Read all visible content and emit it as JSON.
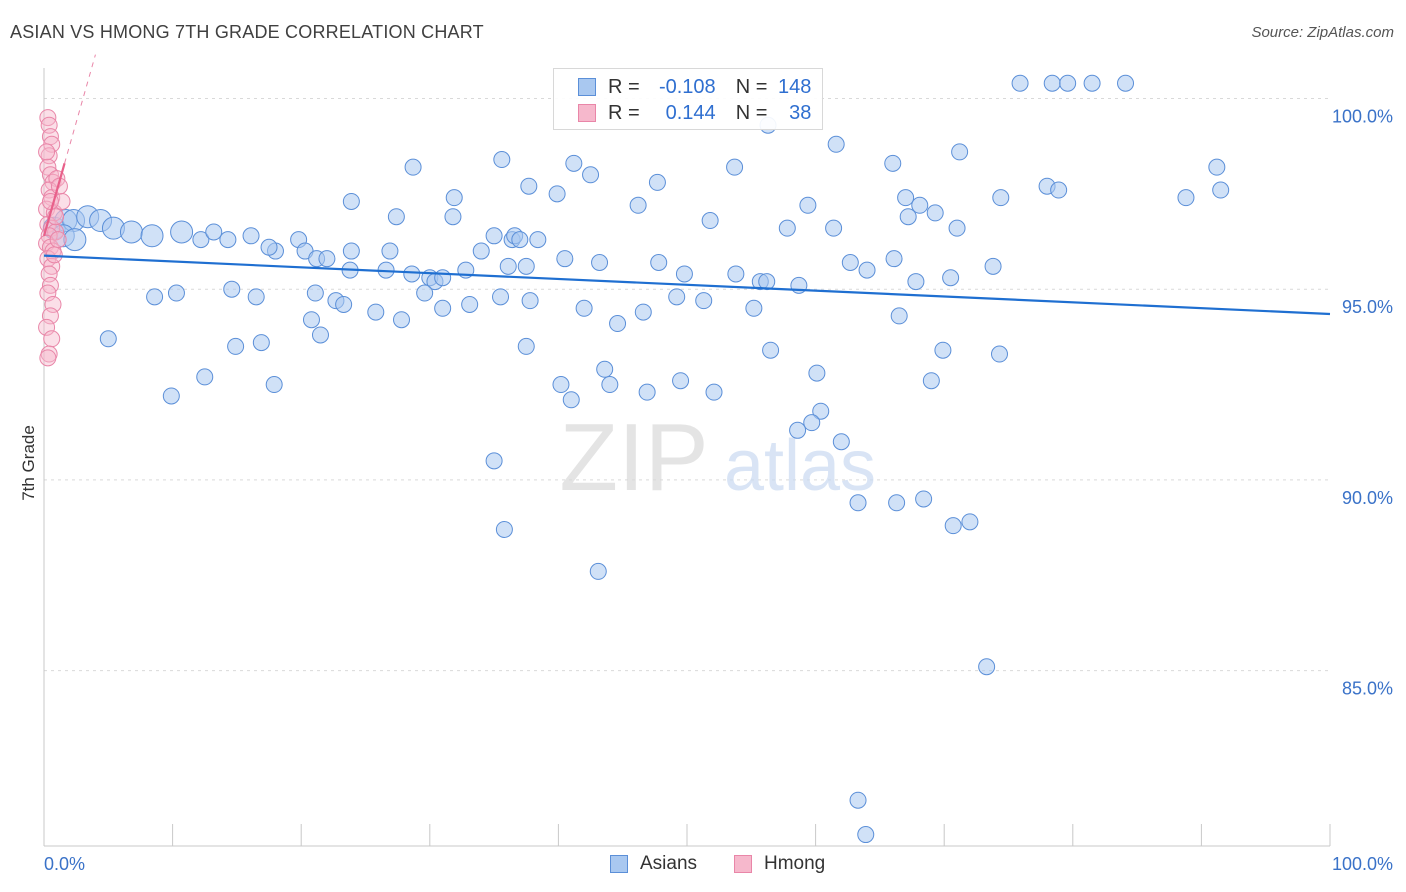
{
  "header": {
    "title": "ASIAN VS HMONG 7TH GRADE CORRELATION CHART",
    "source": "Source: ZipAtlas.com"
  },
  "legend": {
    "asians": {
      "r_label": "R =",
      "r_value": "-0.108",
      "n_label": "N =",
      "n_value": "148"
    },
    "hmong": {
      "r_label": "R =",
      "r_value": "0.144",
      "n_label": "N =",
      "n_value": "38"
    }
  },
  "bottom_legend": {
    "asians": "Asians",
    "hmong": "Hmong"
  },
  "watermark": {
    "zip": "ZIP",
    "atlas": "atlas"
  },
  "colors": {
    "asian_fill": "#a9c8f0",
    "asian_stroke": "#5b8fd8",
    "asian_line": "#1f6fd1",
    "hmong_fill": "#f6b8cc",
    "hmong_stroke": "#e986a8",
    "hmong_line": "#e8608a",
    "tick_label": "#3a72c8",
    "grid": "#d9d9d9"
  },
  "chart_data": {
    "type": "scatter",
    "title": "ASIAN VS HMONG 7TH GRADE CORRELATION CHART",
    "xlabel": "",
    "ylabel": "7th Grade",
    "xlim": [
      0,
      100
    ],
    "ylim": [
      80.4,
      100.8
    ],
    "x_tick_labels": [
      "0.0%",
      "100.0%"
    ],
    "y_ticks": [
      {
        "value": 100,
        "label": "100.0%"
      },
      {
        "value": 95,
        "label": "95.0%"
      },
      {
        "value": 90,
        "label": "90.0%"
      },
      {
        "value": 85,
        "label": "85.0%"
      }
    ],
    "series": [
      {
        "name": "Asians",
        "r": -0.108,
        "n": 148,
        "trend": {
          "x": [
            0,
            100
          ],
          "y": [
            95.88,
            94.35
          ]
        },
        "points": [
          [
            75.9,
            100.4
          ],
          [
            78.4,
            100.4
          ],
          [
            79.6,
            100.4
          ],
          [
            81.5,
            100.4
          ],
          [
            84.1,
            100.4
          ],
          [
            56.3,
            99.3
          ],
          [
            61.6,
            98.8
          ],
          [
            66.0,
            98.3
          ],
          [
            71.2,
            98.6
          ],
          [
            35.6,
            98.4
          ],
          [
            42.5,
            98.0
          ],
          [
            28.7,
            98.2
          ],
          [
            41.2,
            98.3
          ],
          [
            37.7,
            97.7
          ],
          [
            53.7,
            98.2
          ],
          [
            47.7,
            97.8
          ],
          [
            91.2,
            98.2
          ],
          [
            31.9,
            97.4
          ],
          [
            39.9,
            97.5
          ],
          [
            23.9,
            97.3
          ],
          [
            46.2,
            97.2
          ],
          [
            51.8,
            96.8
          ],
          [
            59.4,
            97.2
          ],
          [
            67.0,
            97.4
          ],
          [
            78.0,
            97.7
          ],
          [
            78.9,
            97.6
          ],
          [
            91.5,
            97.6
          ],
          [
            88.8,
            97.4
          ],
          [
            74.4,
            97.4
          ],
          [
            68.1,
            97.2
          ],
          [
            69.3,
            97.0
          ],
          [
            67.2,
            96.9
          ],
          [
            71.0,
            96.6
          ],
          [
            57.8,
            96.6
          ],
          [
            27.4,
            96.9
          ],
          [
            31.8,
            96.9
          ],
          [
            35.0,
            96.4
          ],
          [
            36.4,
            96.3
          ],
          [
            36.6,
            96.4
          ],
          [
            37.0,
            96.3
          ],
          [
            38.4,
            96.3
          ],
          [
            0.8,
            96.6
          ],
          [
            1.7,
            96.8
          ],
          [
            2.3,
            96.8
          ],
          [
            3.4,
            96.9
          ],
          [
            4.4,
            96.8
          ],
          [
            5.4,
            96.6
          ],
          [
            1.5,
            96.4
          ],
          [
            2.4,
            96.3
          ],
          [
            6.8,
            96.5
          ],
          [
            8.4,
            96.4
          ],
          [
            10.7,
            96.5
          ],
          [
            12.2,
            96.3
          ],
          [
            13.2,
            96.5
          ],
          [
            14.3,
            96.3
          ],
          [
            16.1,
            96.4
          ],
          [
            18.0,
            96.0
          ],
          [
            17.5,
            96.1
          ],
          [
            19.8,
            96.3
          ],
          [
            23.9,
            96.0
          ],
          [
            26.9,
            96.0
          ],
          [
            20.3,
            96.0
          ],
          [
            21.2,
            95.8
          ],
          [
            22.0,
            95.8
          ],
          [
            23.8,
            95.5
          ],
          [
            26.6,
            95.5
          ],
          [
            28.6,
            95.4
          ],
          [
            30.0,
            95.3
          ],
          [
            30.4,
            95.2
          ],
          [
            31.0,
            95.3
          ],
          [
            32.8,
            95.5
          ],
          [
            34.0,
            96.0
          ],
          [
            37.5,
            95.6
          ],
          [
            40.5,
            95.8
          ],
          [
            43.2,
            95.7
          ],
          [
            47.8,
            95.7
          ],
          [
            49.8,
            95.4
          ],
          [
            53.8,
            95.4
          ],
          [
            55.7,
            95.2
          ],
          [
            56.2,
            95.2
          ],
          [
            58.7,
            95.1
          ],
          [
            61.4,
            96.6
          ],
          [
            62.7,
            95.7
          ],
          [
            64.0,
            95.5
          ],
          [
            66.1,
            95.8
          ],
          [
            67.8,
            95.2
          ],
          [
            70.5,
            95.3
          ],
          [
            73.8,
            95.6
          ],
          [
            66.5,
            94.3
          ],
          [
            8.6,
            94.8
          ],
          [
            10.3,
            94.9
          ],
          [
            14.6,
            95.0
          ],
          [
            16.5,
            94.8
          ],
          [
            20.8,
            94.2
          ],
          [
            22.7,
            94.7
          ],
          [
            23.3,
            94.6
          ],
          [
            25.8,
            94.4
          ],
          [
            27.8,
            94.2
          ],
          [
            29.6,
            94.9
          ],
          [
            31.0,
            94.5
          ],
          [
            33.1,
            94.6
          ],
          [
            35.5,
            94.8
          ],
          [
            37.8,
            94.7
          ],
          [
            42.0,
            94.5
          ],
          [
            44.6,
            94.1
          ],
          [
            46.6,
            94.4
          ],
          [
            49.2,
            94.8
          ],
          [
            51.3,
            94.7
          ],
          [
            55.2,
            94.5
          ],
          [
            5.0,
            93.7
          ],
          [
            14.9,
            93.5
          ],
          [
            16.9,
            93.6
          ],
          [
            21.5,
            93.8
          ],
          [
            37.5,
            93.5
          ],
          [
            43.6,
            92.9
          ],
          [
            44.0,
            92.5
          ],
          [
            46.9,
            92.3
          ],
          [
            49.5,
            92.6
          ],
          [
            56.5,
            93.4
          ],
          [
            60.1,
            92.8
          ],
          [
            69.9,
            93.4
          ],
          [
            74.3,
            93.3
          ],
          [
            9.9,
            92.2
          ],
          [
            12.5,
            92.7
          ],
          [
            17.9,
            92.5
          ],
          [
            40.2,
            92.5
          ],
          [
            41.0,
            92.1
          ],
          [
            52.1,
            92.3
          ],
          [
            58.6,
            91.3
          ],
          [
            60.4,
            91.8
          ],
          [
            62.0,
            91.0
          ],
          [
            59.7,
            91.5
          ],
          [
            69.0,
            92.6
          ],
          [
            63.3,
            89.4
          ],
          [
            66.3,
            89.4
          ],
          [
            68.4,
            89.5
          ],
          [
            70.7,
            88.8
          ],
          [
            72.0,
            88.9
          ],
          [
            35.0,
            90.5
          ],
          [
            35.8,
            88.7
          ],
          [
            43.1,
            87.6
          ],
          [
            73.3,
            85.1
          ],
          [
            63.3,
            81.6
          ],
          [
            63.9,
            80.7
          ],
          [
            21.1,
            94.9
          ],
          [
            36.1,
            95.6
          ]
        ]
      },
      {
        "name": "Hmong",
        "r": 0.144,
        "n": 38,
        "trend": {
          "x": [
            0,
            1.6
          ],
          "y": [
            96.4,
            98.3
          ]
        },
        "points": [
          [
            0.3,
            99.5
          ],
          [
            0.4,
            99.3
          ],
          [
            0.5,
            99.0
          ],
          [
            0.6,
            98.8
          ],
          [
            0.4,
            98.5
          ],
          [
            0.3,
            98.2
          ],
          [
            0.5,
            98.0
          ],
          [
            0.7,
            97.8
          ],
          [
            1.0,
            97.9
          ],
          [
            0.4,
            97.6
          ],
          [
            0.6,
            97.4
          ],
          [
            0.2,
            97.1
          ],
          [
            0.8,
            97.0
          ],
          [
            0.3,
            96.7
          ],
          [
            0.6,
            96.6
          ],
          [
            0.9,
            96.5
          ],
          [
            0.4,
            96.4
          ],
          [
            0.2,
            96.2
          ],
          [
            0.5,
            96.1
          ],
          [
            0.7,
            96.0
          ],
          [
            0.3,
            95.8
          ],
          [
            0.6,
            95.6
          ],
          [
            0.4,
            95.4
          ],
          [
            0.5,
            95.1
          ],
          [
            0.3,
            94.9
          ],
          [
            0.7,
            94.6
          ],
          [
            0.5,
            94.3
          ],
          [
            0.2,
            94.0
          ],
          [
            0.6,
            93.7
          ],
          [
            0.4,
            93.3
          ],
          [
            0.3,
            93.2
          ],
          [
            1.2,
            97.7
          ],
          [
            1.4,
            97.3
          ],
          [
            0.9,
            96.9
          ],
          [
            1.1,
            96.3
          ],
          [
            0.8,
            95.9
          ],
          [
            0.2,
            98.6
          ],
          [
            0.5,
            97.3
          ]
        ]
      }
    ]
  }
}
